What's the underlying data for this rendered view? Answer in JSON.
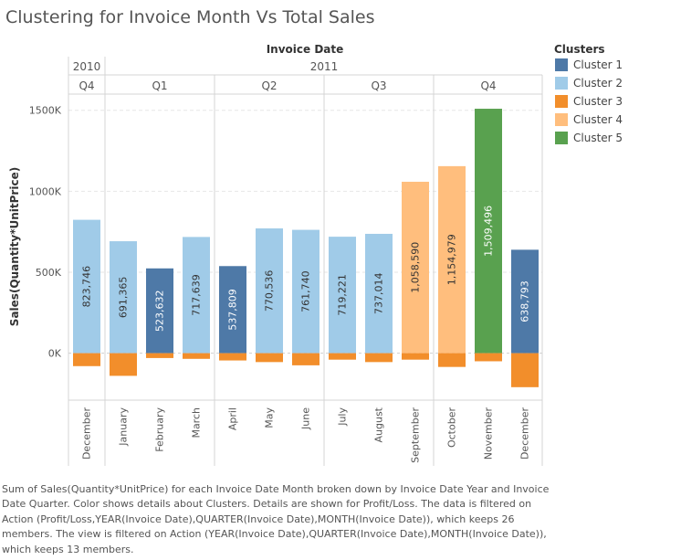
{
  "title": "Clustering for Invoice Month Vs Total Sales",
  "caption": "Sum of Sales(Quantity*UnitPrice) for each Invoice Date Month broken down by Invoice Date Year and Invoice Date Quarter.  Color shows details about Clusters.  Details are shown for Profit/Loss. The data is filtered on Action (Profit/Loss,YEAR(Invoice Date),QUARTER(Invoice Date),MONTH(Invoice Date)), which keeps 26 members. The view is filtered on Action (YEAR(Invoice Date),QUARTER(Invoice Date),MONTH(Invoice Date)), which keeps 13 members.",
  "colors": {
    "cluster1": "#4e79a7",
    "cluster2": "#a0cbe8",
    "cluster3": "#f28e2b",
    "cluster4": "#ffbe7d",
    "cluster5": "#59a14f"
  },
  "chart_data": {
    "type": "bar",
    "header_title": "Invoice Date",
    "ylabel": "Sales(Quantity*UnitPrice)",
    "ylim": [
      -290000,
      1600000
    ],
    "yticks": [
      0,
      500000,
      1000000,
      1500000
    ],
    "ytick_labels": [
      "0K",
      "500K",
      "1000K",
      "1500K"
    ],
    "grid": true,
    "legend": {
      "title": "Clusters",
      "position": "right",
      "entries": [
        {
          "label": "Cluster 1",
          "color": "#4e79a7"
        },
        {
          "label": "Cluster 2",
          "color": "#a0cbe8"
        },
        {
          "label": "Cluster 3",
          "color": "#f28e2b"
        },
        {
          "label": "Cluster 4",
          "color": "#ffbe7d"
        },
        {
          "label": "Cluster 5",
          "color": "#59a14f"
        }
      ]
    },
    "years": [
      {
        "label": "2010",
        "span": [
          0,
          0
        ]
      },
      {
        "label": "2011",
        "span": [
          1,
          12
        ]
      }
    ],
    "quarters": [
      {
        "label": "Q4",
        "span": [
          0,
          0
        ]
      },
      {
        "label": "Q1",
        "span": [
          1,
          3
        ]
      },
      {
        "label": "Q2",
        "span": [
          4,
          6
        ]
      },
      {
        "label": "Q3",
        "span": [
          7,
          9
        ]
      },
      {
        "label": "Q4",
        "span": [
          10,
          12
        ]
      }
    ],
    "categories": [
      "December",
      "January",
      "February",
      "March",
      "April",
      "May",
      "June",
      "July",
      "August",
      "September",
      "October",
      "November",
      "December"
    ],
    "series": [
      {
        "kind": "positive",
        "values": [
          823746,
          691365,
          523632,
          717639,
          537809,
          770536,
          761740,
          719221,
          737014,
          1058590,
          1154979,
          1509496,
          638793
        ],
        "labels": [
          "823,746",
          "691,365",
          "523,632",
          "717,639",
          "537,809",
          "770,536",
          "761,740",
          "719,221",
          "737,014",
          "1,058,590",
          "1,154,979",
          "1,509,496",
          "638,793"
        ],
        "clusters": [
          2,
          2,
          1,
          2,
          1,
          2,
          2,
          2,
          2,
          4,
          4,
          5,
          1
        ]
      },
      {
        "kind": "negative",
        "values": [
          -80000,
          -140000,
          -30000,
          -35000,
          -45000,
          -55000,
          -75000,
          -40000,
          -55000,
          -40000,
          -85000,
          -50000,
          -210000
        ],
        "clusters": [
          3,
          3,
          3,
          3,
          3,
          3,
          3,
          3,
          3,
          3,
          3,
          3,
          3
        ]
      }
    ]
  }
}
